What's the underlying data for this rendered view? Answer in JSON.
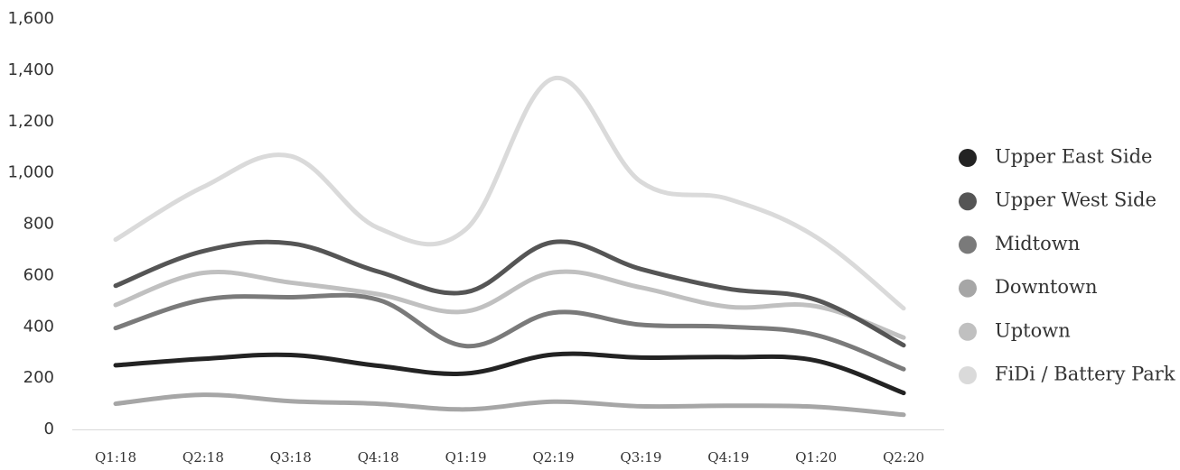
{
  "chart_data": {
    "type": "line",
    "title": "",
    "xlabel": "",
    "ylabel": "",
    "ylim": [
      0,
      1600
    ],
    "yticks": [
      0,
      200,
      400,
      600,
      800,
      1000,
      1200,
      1400,
      1600
    ],
    "ytick_labels": [
      "0",
      "200",
      "400",
      "600",
      "800",
      "1,000",
      "1,200",
      "1,400",
      "1,600"
    ],
    "categories": [
      "Q1:18",
      "Q2:18",
      "Q3:18",
      "Q4:18",
      "Q1:19",
      "Q2:19",
      "Q3:19",
      "Q4:19",
      "Q1:20",
      "Q2:20"
    ],
    "grid": false,
    "legend_position": "right",
    "series": [
      {
        "name": "Upper East Side",
        "color": "#232323",
        "values": [
          250,
          275,
          290,
          248,
          218,
          292,
          280,
          282,
          268,
          142
        ]
      },
      {
        "name": "Upper West Side",
        "color": "#555555",
        "values": [
          560,
          695,
          725,
          615,
          535,
          730,
          625,
          548,
          505,
          328
        ]
      },
      {
        "name": "Midtown",
        "color": "#7a7a7a",
        "values": [
          395,
          505,
          515,
          505,
          325,
          455,
          408,
          400,
          368,
          235
        ]
      },
      {
        "name": "Downtown",
        "color": "#a6a6a6",
        "values": [
          100,
          135,
          110,
          100,
          78,
          108,
          90,
          92,
          88,
          57
        ]
      },
      {
        "name": "Uptown",
        "color": "#c0c0c0",
        "values": [
          485,
          610,
          572,
          527,
          460,
          612,
          553,
          478,
          480,
          358
        ]
      },
      {
        "name": "FiDi / Battery Park",
        "color": "#dadada",
        "values": [
          740,
          945,
          1065,
          785,
          780,
          1368,
          965,
          898,
          750,
          472
        ]
      }
    ]
  }
}
